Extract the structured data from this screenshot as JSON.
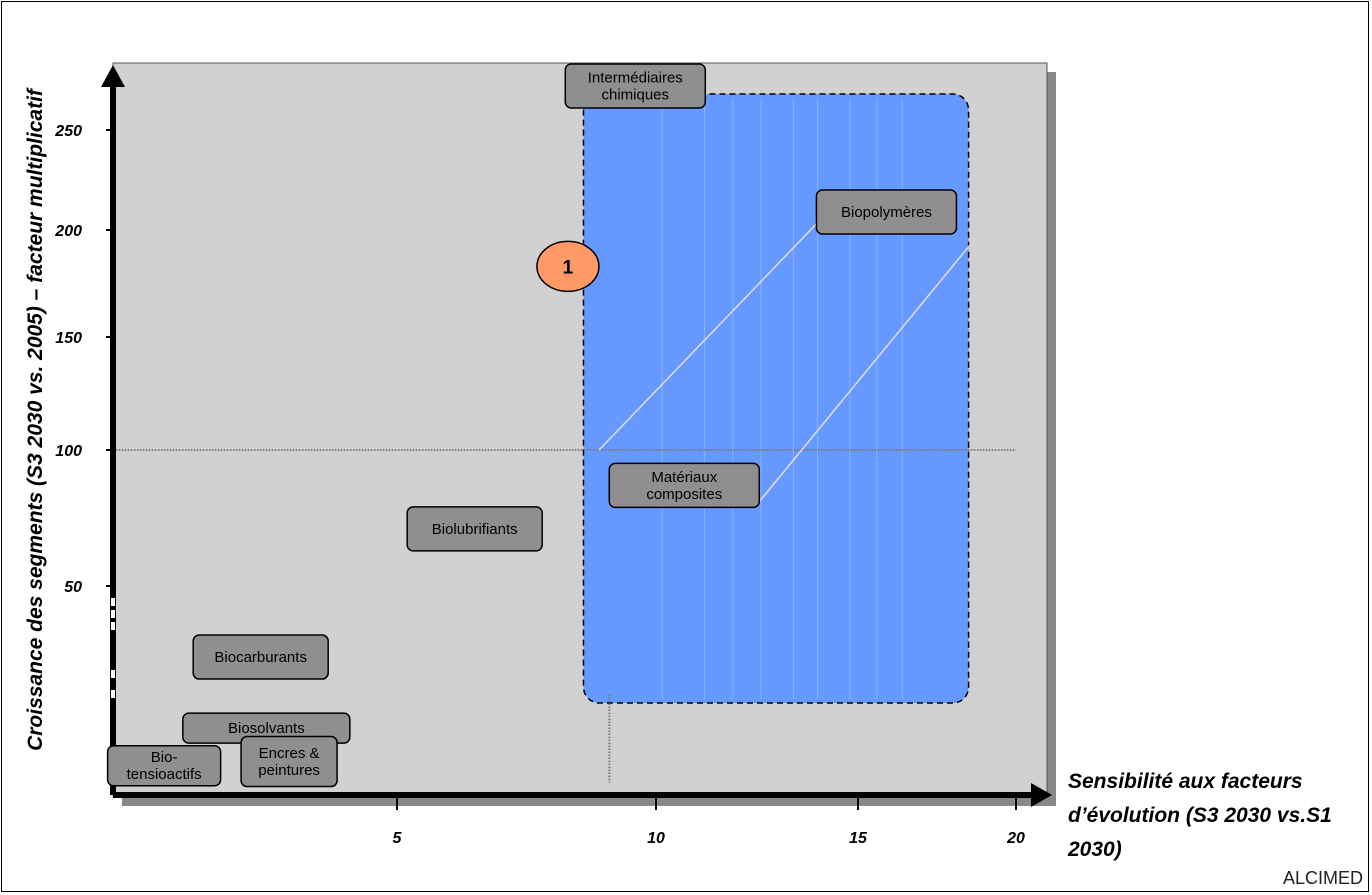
{
  "chart_data": {
    "type": "scatter",
    "ylabel": "Croissance des segments (S3 2030 vs. 2005) – facteur multiplicatif",
    "xlabel": "Sensibilité aux facteurs d’évolution (S3 2030 vs.S1 2030)",
    "x_ticks": [
      "5",
      "10",
      "15",
      "20"
    ],
    "y_ticks": [
      "50",
      "100",
      "150",
      "200",
      "250"
    ],
    "points": [
      {
        "label": "Intermédiaires chimiques",
        "x": 9.6,
        "y": 272
      },
      {
        "label": "Biopolymères",
        "x": 15.9,
        "y": 209
      },
      {
        "label": "Matériaux composites",
        "x": 10.7,
        "y": 87
      },
      {
        "label": "Biolubrifiants",
        "x": 6.5,
        "y": 71
      },
      {
        "label": "Biocarburants",
        "x": 2.6,
        "y": 33
      },
      {
        "label": "Biosolvants",
        "x": 2.7,
        "y": 16
      },
      {
        "label": "Bio-tensioactifs",
        "x": 0.9,
        "y": 7
      },
      {
        "label": "Encres & peintures",
        "x": 3.1,
        "y": 8
      }
    ],
    "highlight_marker": "1",
    "accent_color": "#6699ff"
  },
  "logo": "ALCIMED"
}
